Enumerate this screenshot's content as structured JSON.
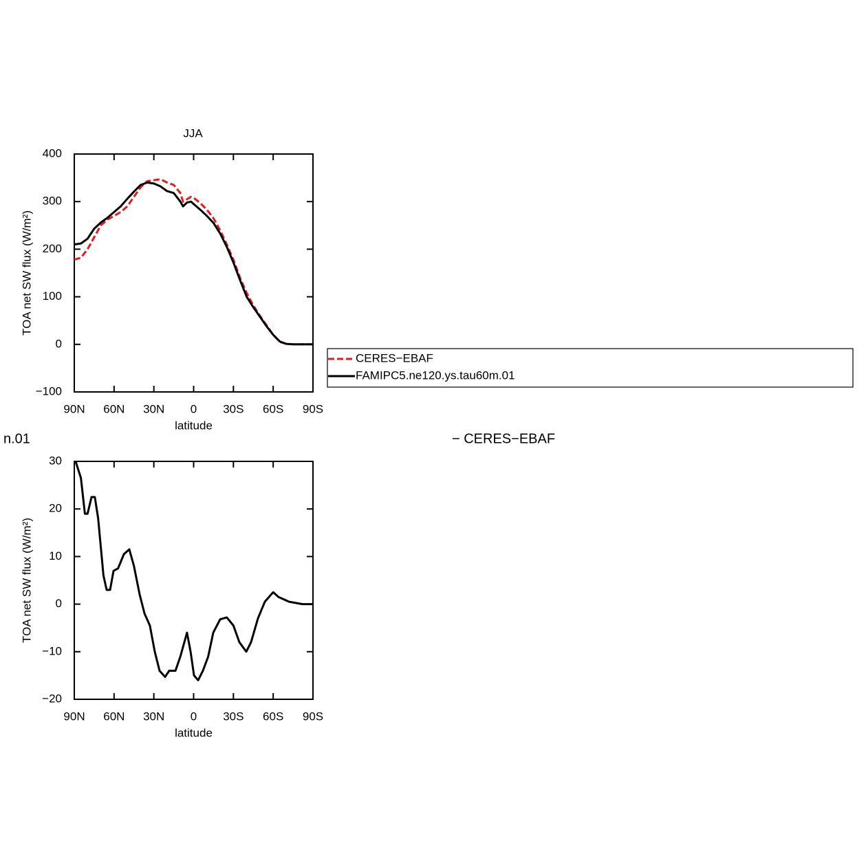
{
  "chart_data": [
    {
      "type": "line",
      "title": "JJA",
      "xlabel": "latitude",
      "ylabel": "TOA net SW flux (W/m²)",
      "xlim": [
        90,
        -90
      ],
      "ylim": [
        -100,
        400
      ],
      "xticks": [
        {
          "value": 90,
          "label": "90N"
        },
        {
          "value": 60,
          "label": "60N"
        },
        {
          "value": 30,
          "label": "30N"
        },
        0,
        {
          "value": -30,
          "label": "30S"
        },
        {
          "value": -60,
          "label": "60S"
        },
        {
          "value": -90,
          "label": "90S"
        }
      ],
      "yticks": [
        {
          "value": -100,
          "label": "−100"
        },
        0,
        100,
        200,
        300,
        400
      ],
      "x": [
        90,
        85,
        80,
        75,
        70,
        65,
        60,
        55,
        50,
        45,
        40,
        35,
        30,
        25,
        20,
        15,
        10,
        8,
        5,
        2,
        0,
        -5,
        -10,
        -15,
        -20,
        -25,
        -30,
        -35,
        -40,
        -45,
        -50,
        -55,
        -60,
        -65,
        -70,
        -75,
        -80,
        -90
      ],
      "series": [
        {
          "name": "CERES−EBAF",
          "color": "#e41a1c",
          "dash": true,
          "values": [
            178,
            182,
            200,
            225,
            250,
            262,
            270,
            278,
            290,
            310,
            330,
            343,
            345,
            347,
            340,
            335,
            318,
            300,
            305,
            310,
            308,
            297,
            283,
            265,
            240,
            210,
            178,
            140,
            108,
            82,
            60,
            40,
            20,
            5,
            1,
            0,
            0,
            0
          ]
        },
        {
          "name": "FAMIPC5.ne120.ys.tau60m.01",
          "color": "#000000",
          "dash": false,
          "values": [
            210,
            212,
            222,
            243,
            256,
            266,
            278,
            290,
            306,
            321,
            335,
            340,
            338,
            332,
            322,
            318,
            300,
            290,
            298,
            300,
            295,
            283,
            270,
            255,
            233,
            205,
            172,
            135,
            100,
            78,
            58,
            38,
            20,
            6,
            1,
            0,
            0,
            0
          ]
        }
      ]
    },
    {
      "type": "line",
      "annotations": [
        "n.01",
        "− CERES−EBAF"
      ],
      "xlabel": "latitude",
      "ylabel": "TOA net SW flux (W/m²)",
      "xlim": [
        90,
        -90
      ],
      "ylim": [
        -20,
        30
      ],
      "xticks": [
        {
          "value": 90,
          "label": "90N"
        },
        {
          "value": 60,
          "label": "60N"
        },
        {
          "value": 30,
          "label": "30N"
        },
        0,
        {
          "value": -30,
          "label": "30S"
        },
        {
          "value": -60,
          "label": "60S"
        },
        {
          "value": -90,
          "label": "90S"
        }
      ],
      "yticks": [
        {
          "value": -20,
          "label": "−20"
        },
        {
          "value": -10,
          "label": "−10"
        },
        0,
        10,
        20,
        30
      ],
      "x": [
        89,
        85,
        82,
        80,
        77,
        74.5,
        72,
        68,
        65.6,
        63,
        60.4,
        57,
        52.6,
        48.5,
        45,
        40.7,
        37,
        33,
        29.3,
        25.7,
        21.5,
        18.4,
        13.7,
        10,
        7,
        5,
        2.3,
        -0.3,
        -3.4,
        -7,
        -11,
        -14.8,
        -20,
        -25,
        -30,
        -34.5,
        -39.7,
        -43.3,
        -48.5,
        -53.7,
        -60,
        -64,
        -72,
        -82,
        -90
      ],
      "series": [
        {
          "color": "#000000",
          "dash": false,
          "values": [
            30,
            26.5,
            19,
            19,
            22.5,
            22.5,
            18,
            6,
            3,
            3,
            7,
            7.5,
            10.5,
            11.5,
            8,
            2,
            -2,
            -4.5,
            -10,
            -14,
            -15.3,
            -14,
            -14,
            -11,
            -8,
            -6,
            -10,
            -15,
            -16,
            -14,
            -11,
            -6,
            -3.2,
            -2.8,
            -4.5,
            -8,
            -10,
            -8,
            -3,
            0.5,
            2.5,
            1.5,
            0.5,
            0,
            0
          ]
        }
      ]
    }
  ]
}
